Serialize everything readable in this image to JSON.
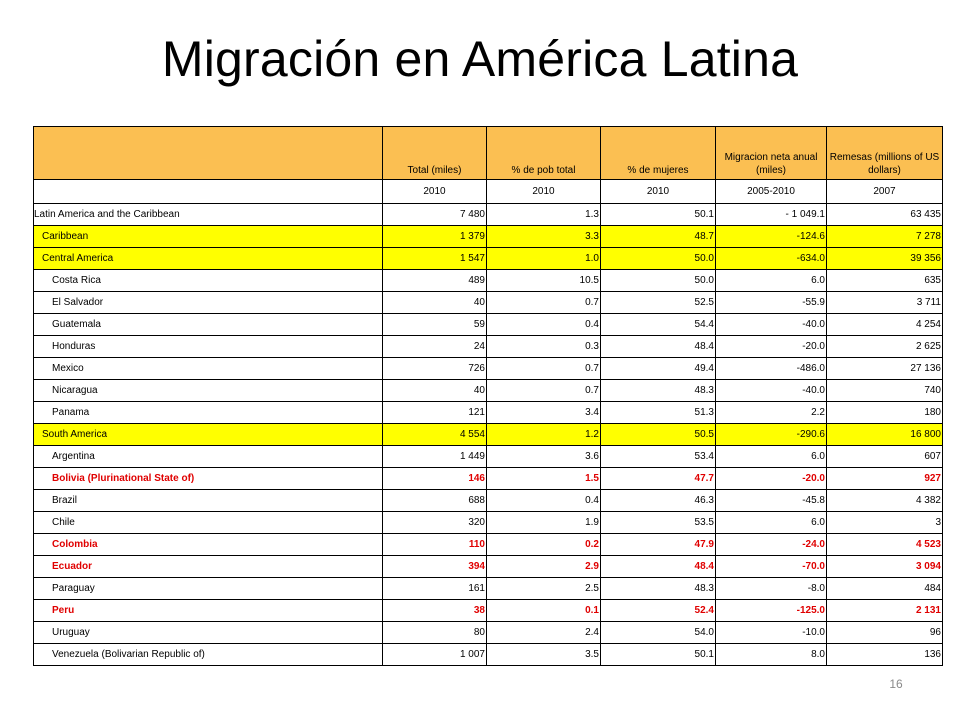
{
  "title": "Migración en América Latina",
  "page_number": "16",
  "colors": {
    "header_bg": "#fbbf52",
    "highlight_bg": "#ffff00",
    "emphasis_text": "#e00000"
  },
  "headers": [
    "",
    "Total (miles)",
    "% de pob total",
    "% de mujeres",
    "Migracion neta anual (miles)",
    "Remesas (millions of US dollars)"
  ],
  "years": [
    "",
    "2010",
    "2010",
    "2010",
    "2005-2010",
    "2007"
  ],
  "rows": [
    {
      "name": "Latin America and the Caribbean",
      "level": 0,
      "style": "",
      "values": [
        "7 480",
        "1.3",
        "50.1",
        "- 1 049.1",
        "63 435"
      ]
    },
    {
      "name": "Caribbean",
      "level": 1,
      "style": "yellow",
      "values": [
        "1 379",
        "3.3",
        "48.7",
        "-124.6",
        "7 278"
      ]
    },
    {
      "name": "Central America",
      "level": 1,
      "style": "yellow",
      "values": [
        "1 547",
        "1.0",
        "50.0",
        "-634.0",
        "39 356"
      ]
    },
    {
      "name": "Costa Rica",
      "level": 2,
      "style": "",
      "values": [
        "489",
        "10.5",
        "50.0",
        "6.0",
        "635"
      ]
    },
    {
      "name": "El Salvador",
      "level": 2,
      "style": "",
      "values": [
        "40",
        "0.7",
        "52.5",
        "-55.9",
        "3 711"
      ]
    },
    {
      "name": "Guatemala",
      "level": 2,
      "style": "",
      "values": [
        "59",
        "0.4",
        "54.4",
        "-40.0",
        "4 254"
      ]
    },
    {
      "name": "Honduras",
      "level": 2,
      "style": "",
      "values": [
        "24",
        "0.3",
        "48.4",
        "-20.0",
        "2 625"
      ]
    },
    {
      "name": "Mexico",
      "level": 2,
      "style": "",
      "values": [
        "726",
        "0.7",
        "49.4",
        "-486.0",
        "27 136"
      ]
    },
    {
      "name": "Nicaragua",
      "level": 2,
      "style": "",
      "values": [
        "40",
        "0.7",
        "48.3",
        "-40.0",
        "740"
      ]
    },
    {
      "name": "Panama",
      "level": 2,
      "style": "",
      "values": [
        "121",
        "3.4",
        "51.3",
        "2.2",
        "180"
      ]
    },
    {
      "name": "South America",
      "level": 1,
      "style": "yellow",
      "values": [
        "4 554",
        "1.2",
        "50.5",
        "-290.6",
        "16 800"
      ]
    },
    {
      "name": "Argentina",
      "level": 2,
      "style": "",
      "values": [
        "1 449",
        "3.6",
        "53.4",
        "6.0",
        "607"
      ]
    },
    {
      "name": "Bolivia (Plurinational State of)",
      "level": 2,
      "style": "red",
      "values": [
        "146",
        "1.5",
        "47.7",
        "-20.0",
        "927"
      ]
    },
    {
      "name": "Brazil",
      "level": 2,
      "style": "",
      "values": [
        "688",
        "0.4",
        "46.3",
        "-45.8",
        "4 382"
      ]
    },
    {
      "name": "Chile",
      "level": 2,
      "style": "",
      "values": [
        "320",
        "1.9",
        "53.5",
        "6.0",
        "3"
      ]
    },
    {
      "name": "Colombia",
      "level": 2,
      "style": "red",
      "values": [
        "110",
        "0.2",
        "47.9",
        "-24.0",
        "4 523"
      ]
    },
    {
      "name": "Ecuador",
      "level": 2,
      "style": "red",
      "values": [
        "394",
        "2.9",
        "48.4",
        "-70.0",
        "3 094"
      ]
    },
    {
      "name": "Paraguay",
      "level": 2,
      "style": "",
      "values": [
        "161",
        "2.5",
        "48.3",
        "-8.0",
        "484"
      ]
    },
    {
      "name": "Peru",
      "level": 2,
      "style": "red",
      "values": [
        "38",
        "0.1",
        "52.4",
        "-125.0",
        "2 131"
      ]
    },
    {
      "name": "Uruguay",
      "level": 2,
      "style": "",
      "values": [
        "80",
        "2.4",
        "54.0",
        "-10.0",
        "96"
      ]
    },
    {
      "name": "Venezuela (Bolivarian Republic of)",
      "level": 2,
      "style": "",
      "values": [
        "1 007",
        "3.5",
        "50.1",
        "8.0",
        "136"
      ]
    }
  ]
}
